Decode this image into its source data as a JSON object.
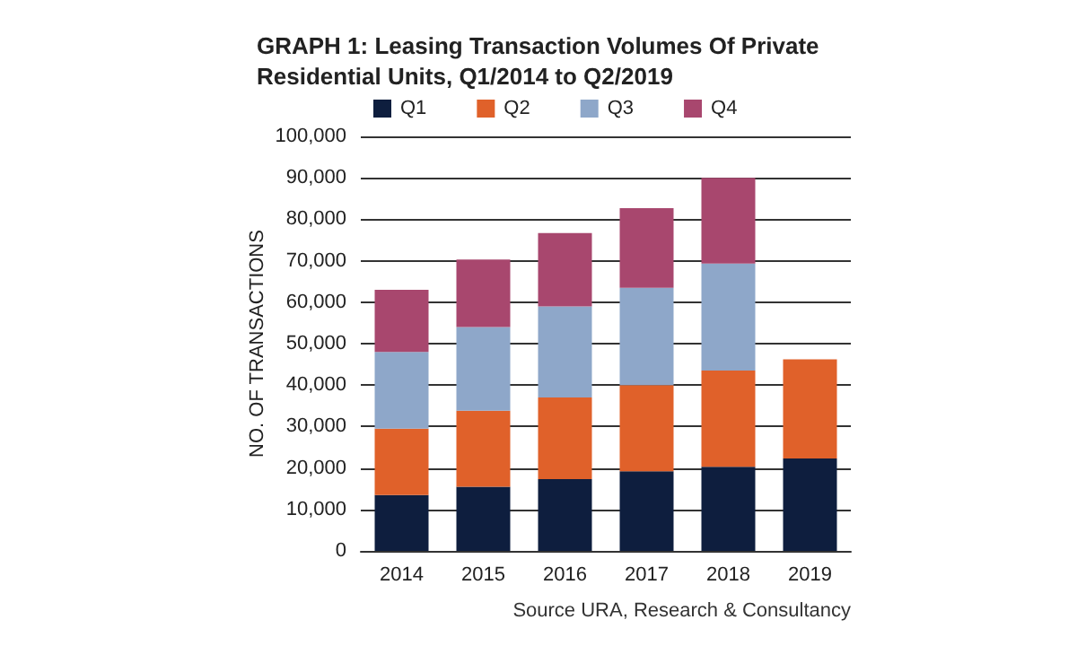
{
  "chart_data": {
    "type": "bar",
    "stacked": true,
    "title": "GRAPH 1: Leasing Transaction Volumes Of Private\nResidential Units, Q1/2014 to Q2/2019",
    "ylabel": "NO. OF TRANSACTIONS",
    "annotations": [
      "Source URA, Research & Consultancy"
    ],
    "categories": [
      "2014",
      "2015",
      "2016",
      "2017",
      "2018",
      "2019"
    ],
    "series": [
      {
        "name": "Q1",
        "color": "#0e1e3e",
        "values": [
          13500,
          15500,
          17300,
          19200,
          20300,
          22300
        ]
      },
      {
        "name": "Q2",
        "color": "#e0612a",
        "values": [
          16000,
          18300,
          19700,
          20800,
          23200,
          23900
        ]
      },
      {
        "name": "Q3",
        "color": "#8ea7c9",
        "values": [
          18500,
          20200,
          22000,
          23500,
          25800,
          null
        ]
      },
      {
        "name": "Q4",
        "color": "#a8476e",
        "values": [
          15000,
          16300,
          17700,
          19200,
          20700,
          null
        ]
      }
    ],
    "ylim": [
      0,
      100000
    ],
    "yticks": [
      0,
      {
        "value": 10000,
        "label": "10,000"
      },
      {
        "value": 20000,
        "label": "20,000"
      },
      {
        "value": 30000,
        "label": "30,000"
      },
      {
        "value": 40000,
        "label": "40,000"
      },
      {
        "value": 50000,
        "label": "50,000"
      },
      {
        "value": 60000,
        "label": "60,000"
      },
      {
        "value": 70000,
        "label": "70,000"
      },
      {
        "value": 80000,
        "label": "80,000"
      },
      {
        "value": 90000,
        "label": "90,000"
      },
      {
        "value": 100000,
        "label": "100,000"
      }
    ],
    "grid": "y",
    "legend": "top"
  }
}
